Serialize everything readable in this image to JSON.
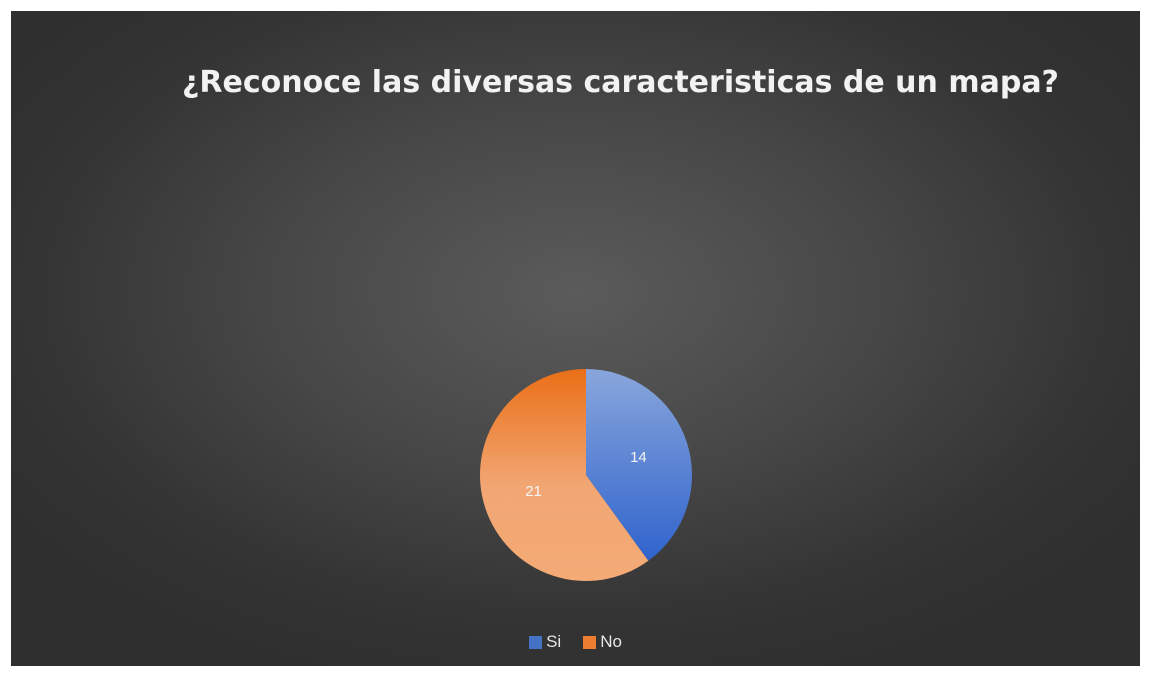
{
  "chart_data": {
    "type": "pie",
    "title": "¿Reconoce las diversas caracteristicas de un mapa?",
    "categories": [
      "Si",
      "No"
    ],
    "values": [
      14,
      21
    ],
    "colors": [
      "#4472c4",
      "#ed7d31"
    ],
    "data_labels": [
      "14",
      "21"
    ],
    "legend_placement": "bottom",
    "start_angle_deg": 0,
    "direction": "clockwise"
  }
}
